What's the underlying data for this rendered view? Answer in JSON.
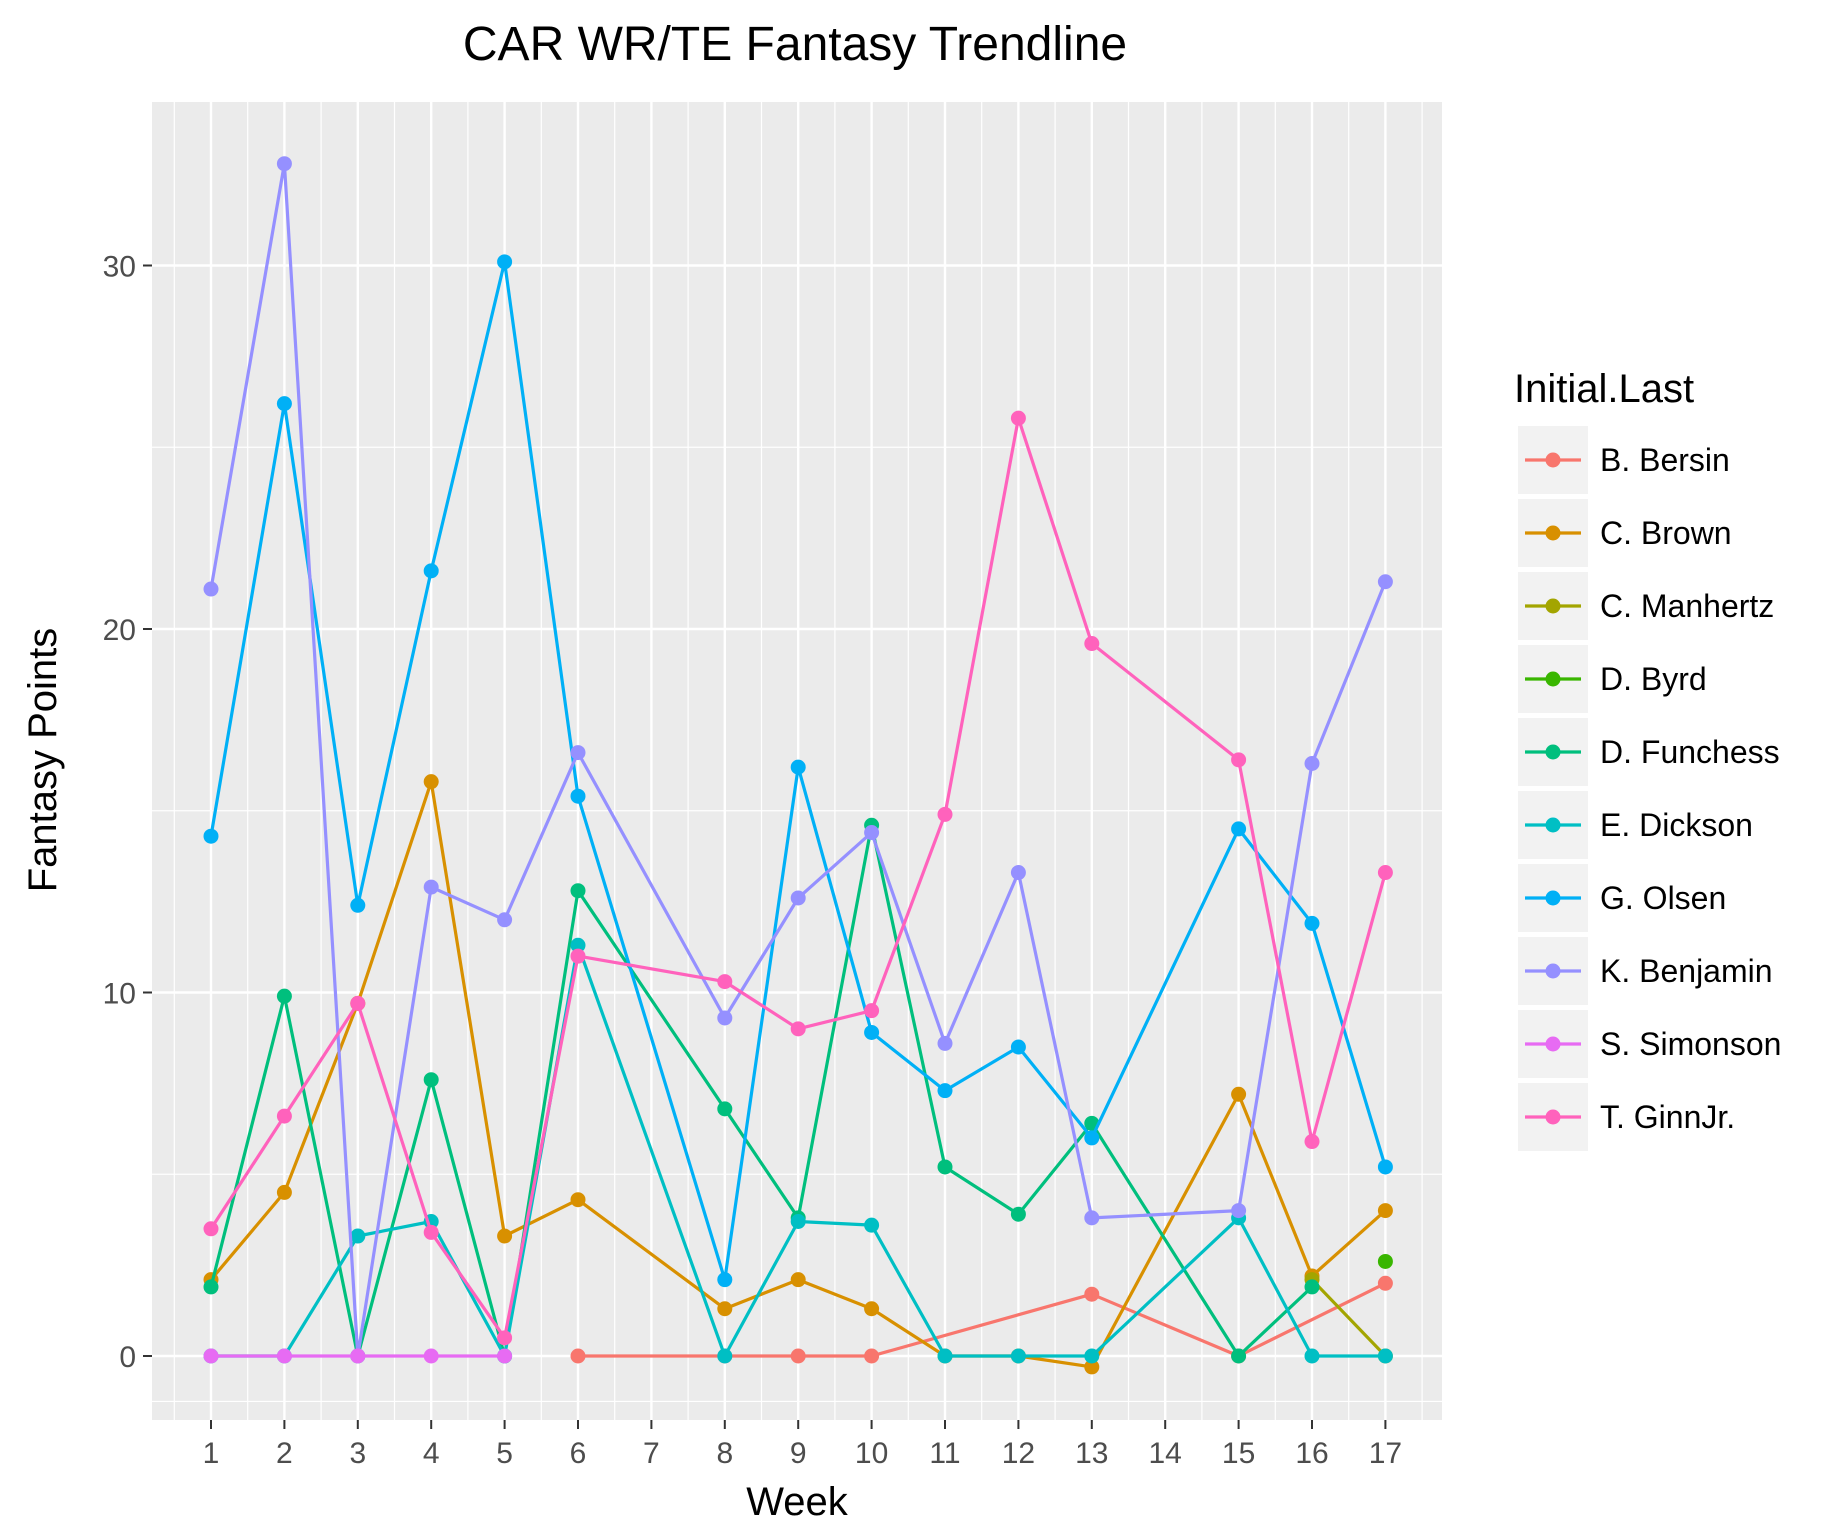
{
  "chart_data": {
    "type": "line",
    "title": "CAR WR/TE Fantasy Trendline",
    "xlabel": "Week",
    "ylabel": "Fantasy Points",
    "x_ticks": [
      "1",
      "2",
      "3",
      "4",
      "5",
      "6",
      "7",
      "8",
      "9",
      "10",
      "11",
      "12",
      "13",
      "14",
      "15",
      "16",
      "17"
    ],
    "y_ticks": [
      0,
      10,
      20,
      30
    ],
    "ylim": [
      -2,
      34.5
    ],
    "legend_title": "Initial.Last",
    "legend_position": "right",
    "grid": true,
    "series": [
      {
        "name": "B. Bersin",
        "color": "#F8766D",
        "points": [
          [
            6,
            0
          ],
          [
            8,
            0
          ],
          [
            9,
            0
          ],
          [
            10,
            0
          ],
          [
            13,
            1.7
          ],
          [
            15,
            0
          ],
          [
            17,
            2.0
          ]
        ]
      },
      {
        "name": "C. Brown",
        "color": "#D89000",
        "points": [
          [
            1,
            2.1
          ],
          [
            2,
            4.5
          ],
          [
            3,
            9.7
          ],
          [
            4,
            15.8
          ],
          [
            5,
            3.3
          ],
          [
            6,
            4.3
          ],
          [
            8,
            1.3
          ],
          [
            9,
            2.1
          ],
          [
            10,
            1.3
          ],
          [
            11,
            0
          ],
          [
            12,
            0
          ],
          [
            13,
            -0.3
          ],
          [
            15,
            7.2
          ],
          [
            16,
            2.2
          ],
          [
            17,
            4.0
          ]
        ]
      },
      {
        "name": "C. Manhertz",
        "color": "#A3A500",
        "points": [
          [
            16,
            2.1
          ],
          [
            17,
            0
          ]
        ]
      },
      {
        "name": "D. Byrd",
        "color": "#39B600",
        "points": [
          [
            17,
            2.6
          ]
        ]
      },
      {
        "name": "D. Funchess",
        "color": "#00BF7D",
        "points": [
          [
            1,
            1.9
          ],
          [
            2,
            9.9
          ],
          [
            3,
            0
          ],
          [
            4,
            7.6
          ],
          [
            5,
            0
          ],
          [
            6,
            12.8
          ],
          [
            8,
            6.8
          ],
          [
            9,
            3.8
          ],
          [
            10,
            14.6
          ],
          [
            11,
            5.2
          ],
          [
            12,
            3.9
          ],
          [
            13,
            6.4
          ],
          [
            15,
            0
          ],
          [
            16,
            1.9
          ]
        ]
      },
      {
        "name": "E. Dickson",
        "color": "#00BFC4",
        "points": [
          [
            1,
            0
          ],
          [
            2,
            0
          ],
          [
            3,
            3.3
          ],
          [
            4,
            3.7
          ],
          [
            5,
            0
          ],
          [
            6,
            11.3
          ],
          [
            8,
            0
          ],
          [
            9,
            3.7
          ],
          [
            10,
            3.6
          ],
          [
            11,
            0
          ],
          [
            12,
            0
          ],
          [
            13,
            0
          ],
          [
            15,
            3.8
          ],
          [
            16,
            0
          ],
          [
            17,
            0
          ]
        ]
      },
      {
        "name": "G. Olsen",
        "color": "#00B0F6",
        "points": [
          [
            1,
            14.3
          ],
          [
            2,
            26.2
          ],
          [
            3,
            12.4
          ],
          [
            4,
            21.6
          ],
          [
            5,
            30.1
          ],
          [
            6,
            15.4
          ],
          [
            8,
            2.1
          ],
          [
            9,
            16.2
          ],
          [
            10,
            8.9
          ],
          [
            11,
            7.3
          ],
          [
            12,
            8.5
          ],
          [
            13,
            6.0
          ],
          [
            15,
            14.5
          ],
          [
            16,
            11.9
          ],
          [
            17,
            5.2
          ]
        ]
      },
      {
        "name": "K. Benjamin",
        "color": "#9590FF",
        "points": [
          [
            1,
            21.1
          ],
          [
            2,
            32.8
          ],
          [
            3,
            0
          ],
          [
            4,
            12.9
          ],
          [
            5,
            12.0
          ],
          [
            6,
            16.6
          ],
          [
            8,
            9.3
          ],
          [
            9,
            12.6
          ],
          [
            10,
            14.4
          ],
          [
            11,
            8.6
          ],
          [
            12,
            13.3
          ],
          [
            13,
            3.8
          ],
          [
            15,
            4.0
          ],
          [
            16,
            16.3
          ],
          [
            17,
            21.3
          ]
        ]
      },
      {
        "name": "S. Simonson",
        "color": "#E76BF3",
        "points": [
          [
            1,
            0
          ],
          [
            2,
            0
          ],
          [
            3,
            0
          ],
          [
            4,
            0
          ],
          [
            5,
            0
          ]
        ]
      },
      {
        "name": "T. GinnJr.",
        "color": "#FF62BC",
        "points": [
          [
            1,
            3.5
          ],
          [
            2,
            6.6
          ],
          [
            3,
            9.7
          ],
          [
            4,
            3.4
          ],
          [
            5,
            0.5
          ],
          [
            6,
            11.0
          ],
          [
            8,
            10.3
          ],
          [
            9,
            9.0
          ],
          [
            10,
            9.5
          ],
          [
            11,
            14.9
          ],
          [
            12,
            25.8
          ],
          [
            13,
            19.6
          ],
          [
            15,
            16.4
          ],
          [
            16,
            5.9
          ],
          [
            17,
            13.3
          ]
        ]
      }
    ]
  }
}
